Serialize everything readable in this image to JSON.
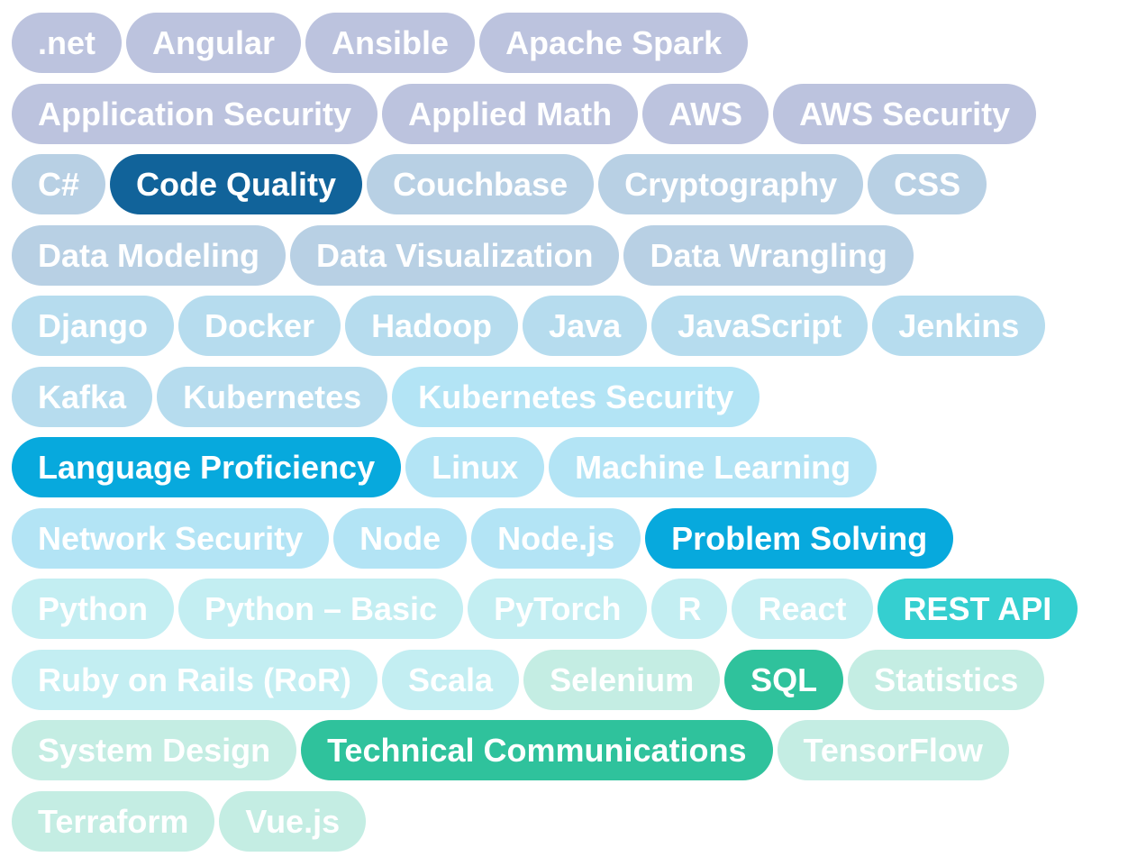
{
  "colors": {
    "text": "#ffffff",
    "lavender": "#bcc3de",
    "steel": "#b8d0e4",
    "powder": "#b6dcee",
    "sky": "#b3e4f5",
    "mint": "#c3eef2",
    "seafoam": "#c4ede3",
    "dark_blue": "#11639a",
    "bright_blue": "#07a9dd",
    "teal": "#35cfd0",
    "green": "#2fc29c"
  },
  "rows": [
    [
      {
        "label": ".net",
        "color": "lavender"
      },
      {
        "label": "Angular",
        "color": "lavender"
      },
      {
        "label": "Ansible",
        "color": "lavender"
      },
      {
        "label": "Apache Spark",
        "color": "lavender"
      }
    ],
    [
      {
        "label": "Application Security",
        "color": "lavender"
      },
      {
        "label": "Applied Math",
        "color": "lavender"
      },
      {
        "label": "AWS",
        "color": "lavender"
      },
      {
        "label": "AWS Security",
        "color": "lavender"
      }
    ],
    [
      {
        "label": "C#",
        "color": "steel"
      },
      {
        "label": "Code Quality",
        "color": "dark_blue"
      },
      {
        "label": "Couchbase",
        "color": "steel"
      },
      {
        "label": "Cryptography",
        "color": "steel"
      },
      {
        "label": "CSS",
        "color": "steel"
      }
    ],
    [
      {
        "label": "Data Modeling",
        "color": "steel"
      },
      {
        "label": "Data Visualization",
        "color": "steel"
      },
      {
        "label": "Data Wrangling",
        "color": "steel"
      }
    ],
    [
      {
        "label": "Django",
        "color": "powder"
      },
      {
        "label": "Docker",
        "color": "powder"
      },
      {
        "label": "Hadoop",
        "color": "powder"
      },
      {
        "label": "Java",
        "color": "powder"
      },
      {
        "label": "JavaScript",
        "color": "powder"
      },
      {
        "label": "Jenkins",
        "color": "powder"
      }
    ],
    [
      {
        "label": "Kafka",
        "color": "powder"
      },
      {
        "label": "Kubernetes",
        "color": "powder"
      },
      {
        "label": "Kubernetes Security",
        "color": "sky"
      }
    ],
    [
      {
        "label": "Language Proficiency",
        "color": "bright_blue"
      },
      {
        "label": "Linux",
        "color": "sky"
      },
      {
        "label": "Machine Learning",
        "color": "sky"
      }
    ],
    [
      {
        "label": "Network Security",
        "color": "sky"
      },
      {
        "label": "Node",
        "color": "sky"
      },
      {
        "label": "Node.js",
        "color": "sky"
      },
      {
        "label": "Problem Solving",
        "color": "bright_blue"
      }
    ],
    [
      {
        "label": "Python",
        "color": "mint"
      },
      {
        "label": "Python – Basic",
        "color": "mint"
      },
      {
        "label": "PyTorch",
        "color": "mint"
      },
      {
        "label": "R",
        "color": "mint"
      },
      {
        "label": "React",
        "color": "mint"
      },
      {
        "label": "REST API",
        "color": "teal"
      }
    ],
    [
      {
        "label": "Ruby on Rails (RoR)",
        "color": "mint"
      },
      {
        "label": "Scala",
        "color": "mint"
      },
      {
        "label": "Selenium",
        "color": "seafoam"
      },
      {
        "label": "SQL",
        "color": "green"
      },
      {
        "label": "Statistics",
        "color": "seafoam"
      }
    ],
    [
      {
        "label": "System Design",
        "color": "seafoam"
      },
      {
        "label": "Technical Communications",
        "color": "green"
      },
      {
        "label": "TensorFlow",
        "color": "seafoam"
      }
    ],
    [
      {
        "label": "Terraform",
        "color": "seafoam"
      },
      {
        "label": "Vue.js",
        "color": "seafoam"
      }
    ]
  ]
}
